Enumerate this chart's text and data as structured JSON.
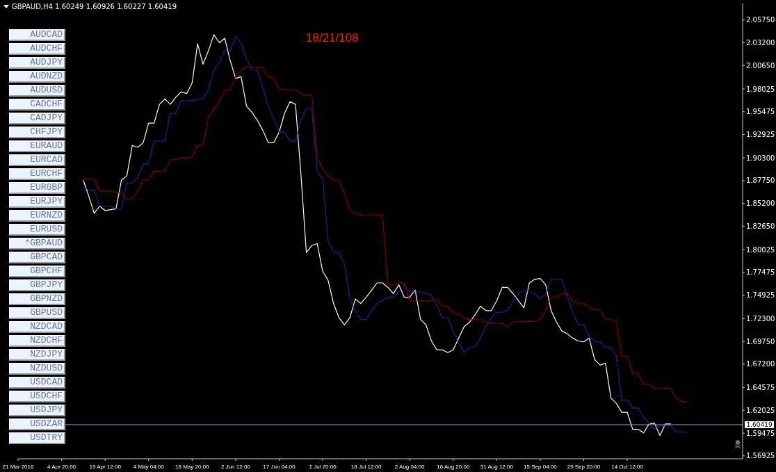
{
  "chart_data": {
    "type": "line",
    "title": "GBPAUD,H4  1.60249 1.60926 1.60227 1.60419",
    "annotations": [
      "18/21/108",
      "AUDCAD",
      "AUDCHF",
      "AUDJPY",
      "AUDNZD",
      "AUDUSD",
      "CADCHF",
      "CADJPY",
      "CHFJPY",
      "EURAUD",
      "EURCAD",
      "EURCHF",
      "EURGBP",
      "EURJPY",
      "EURNZD",
      "EURUSD",
      "*GBPAUD",
      "GBPCAD",
      "GBPCHF",
      "GBPJPY",
      "GBPNZD",
      "GBPUSD",
      "NZDCAD",
      "NZDCHF",
      "NZDJPY",
      "NZDUSD",
      "USDCAD",
      "USDCHF",
      "USDJPY",
      "USDZAR",
      "USDTRY"
    ],
    "categories": [
      "21 Mar 2016",
      null,
      null,
      null,
      null,
      null,
      null,
      null,
      "4 Apr 20:00",
      null,
      null,
      null,
      null,
      null,
      null,
      null,
      "19 Apr 12:00",
      null,
      null,
      null,
      null,
      null,
      null,
      null,
      "4 May 04:00",
      null,
      null,
      null,
      null,
      null,
      null,
      null,
      "18 May 20:00",
      null,
      null,
      null,
      null,
      null,
      null,
      null,
      "2 Jun 12:00",
      null,
      null,
      null,
      null,
      null,
      null,
      null,
      "17 Jun 04:00",
      null,
      null,
      null,
      null,
      null,
      null,
      null,
      "1 Jul 20:00",
      null,
      null,
      null,
      null,
      null,
      null,
      null,
      "18 Jul 12:00",
      null,
      null,
      null,
      null,
      null,
      null,
      null,
      "2 Aug 04:00",
      null,
      null,
      null,
      null,
      null,
      null,
      null,
      "16 Aug 20:00",
      null,
      null,
      null,
      null,
      null,
      null,
      null,
      "31 Aug 12:00",
      null,
      null,
      null,
      null,
      null,
      null,
      null,
      "15 Sep 04:00",
      null,
      null,
      null,
      null,
      null,
      null,
      null,
      "29 Sep 20:00",
      null,
      null,
      null,
      null,
      null,
      null,
      null,
      "14 Oct 12:00",
      null,
      null,
      null,
      null,
      null,
      null,
      null,
      null,
      null,
      null,
      null
    ],
    "series": [
      {
        "color": "#ffffff",
        "values": [
          null,
          null,
          null,
          null,
          null,
          null,
          null,
          null,
          null,
          null,
          null,
          null,
          1.878,
          1.86,
          1.841,
          1.849,
          1.844,
          1.845,
          1.846,
          1.878,
          1.883,
          1.917,
          1.915,
          1.92,
          1.942,
          1.942,
          1.963,
          1.969,
          1.963,
          1.971,
          1.977,
          1.975,
          1.987,
          2.031,
          2.008,
          2.023,
          2.041,
          2.032,
          2.037,
          2.012,
          1.992,
          1.994,
          1.961,
          1.954,
          1.945,
          1.934,
          1.92,
          1.92,
          1.932,
          1.953,
          1.966,
          1.963,
          1.885,
          1.797,
          1.805,
          1.807,
          1.776,
          1.766,
          1.74,
          1.724,
          1.716,
          1.724,
          1.745,
          1.74,
          1.747,
          1.755,
          1.763,
          1.763,
          1.758,
          1.751,
          1.761,
          1.747,
          1.747,
          1.755,
          1.722,
          1.716,
          1.698,
          1.688,
          1.688,
          1.685,
          1.688,
          1.701,
          1.714,
          1.719,
          1.727,
          1.737,
          1.732,
          1.732,
          1.743,
          1.758,
          1.758,
          1.751,
          1.743,
          1.735,
          1.763,
          1.767,
          1.768,
          1.761,
          1.732,
          1.719,
          1.709,
          1.706,
          1.701,
          1.698,
          1.697,
          1.701,
          1.677,
          1.671,
          1.673,
          1.634,
          1.628,
          1.618,
          1.618,
          1.599,
          1.599,
          1.595,
          1.605,
          1.606,
          1.592,
          1.605,
          1.605,
          null,
          null,
          null
        ]
      },
      {
        "color": "#a00000",
        "line_style": "dotted",
        "values": [
          null,
          null,
          null,
          null,
          null,
          null,
          null,
          null,
          null,
          null,
          null,
          null,
          1.88,
          1.88,
          1.88,
          1.866,
          1.866,
          1.866,
          1.864,
          1.864,
          1.857,
          1.857,
          1.866,
          1.878,
          1.878,
          1.888,
          1.888,
          1.888,
          1.901,
          1.901,
          1.903,
          1.903,
          1.903,
          1.917,
          1.917,
          1.948,
          1.958,
          1.966,
          1.979,
          1.979,
          1.994,
          2.001,
          2.005,
          2.005,
          2.005,
          2.004,
          1.994,
          1.992,
          1.98,
          1.98,
          1.979,
          1.979,
          1.975,
          1.973,
          1.973,
          1.903,
          1.891,
          1.883,
          1.878,
          1.878,
          1.864,
          1.844,
          1.841,
          1.839,
          1.839,
          1.839,
          1.839,
          1.839,
          1.761,
          1.761,
          1.763,
          1.763,
          1.743,
          1.743,
          1.743,
          1.743,
          1.743,
          1.745,
          1.737,
          1.737,
          1.73,
          1.728,
          1.724,
          1.722,
          1.722,
          1.722,
          1.719,
          1.718,
          1.718,
          1.718,
          1.714,
          1.719,
          1.72,
          1.72,
          1.72,
          1.72,
          1.722,
          1.732,
          1.747,
          1.747,
          1.751,
          1.751,
          1.743,
          1.74,
          1.74,
          1.736,
          1.733,
          1.733,
          1.722,
          1.722,
          1.72,
          1.681,
          1.681,
          1.662,
          1.662,
          1.65,
          1.649,
          1.645,
          1.645,
          1.645,
          1.645,
          1.634,
          1.63,
          1.63
        ]
      },
      {
        "color": "#2828a8",
        "line_style": "dotted",
        "values": [
          null,
          null,
          null,
          null,
          null,
          null,
          null,
          null,
          null,
          null,
          null,
          null,
          1.87,
          1.867,
          1.867,
          1.849,
          1.849,
          1.849,
          1.846,
          1.846,
          1.875,
          1.875,
          1.881,
          1.896,
          1.896,
          1.922,
          1.922,
          1.922,
          1.953,
          1.953,
          1.967,
          1.967,
          1.967,
          1.969,
          1.969,
          1.979,
          2.001,
          2.01,
          2.023,
          2.023,
          2.039,
          2.031,
          2.014,
          2.002,
          2.002,
          1.981,
          1.961,
          1.948,
          1.932,
          1.932,
          1.922,
          1.922,
          1.945,
          1.958,
          1.958,
          1.888,
          1.88,
          1.81,
          1.797,
          1.797,
          1.784,
          1.745,
          1.732,
          1.722,
          1.722,
          1.732,
          1.74,
          1.743,
          1.747,
          1.747,
          1.753,
          1.761,
          1.753,
          1.753,
          1.753,
          1.751,
          1.749,
          1.737,
          1.724,
          1.724,
          1.709,
          1.696,
          1.685,
          1.691,
          1.691,
          1.701,
          1.714,
          1.724,
          1.73,
          1.73,
          1.732,
          1.743,
          1.751,
          1.754,
          1.754,
          1.751,
          1.745,
          1.751,
          1.767,
          1.767,
          1.767,
          1.747,
          1.73,
          1.716,
          1.716,
          1.704,
          1.697,
          1.697,
          1.691,
          1.691,
          1.681,
          1.631,
          1.632,
          1.623,
          1.623,
          1.613,
          1.606,
          1.599,
          1.603,
          1.603,
          1.603,
          1.596,
          1.596,
          1.596
        ]
      }
    ],
    "ylim": [
      1.566,
      2.076
    ],
    "yticks": [
      {
        "value": 2.0575,
        "label": "2.05750"
      },
      {
        "value": 2.032,
        "label": "2.03200"
      },
      {
        "value": 2.0065,
        "label": "2.00650"
      },
      {
        "value": 1.98025,
        "label": "1.98025"
      },
      {
        "value": 1.95475,
        "label": "1.95475"
      },
      {
        "value": 1.92925,
        "label": "1.92925"
      },
      {
        "value": 1.903,
        "label": "1.90300"
      },
      {
        "value": 1.8775,
        "label": "1.87750"
      },
      {
        "value": 1.852,
        "label": "1.85200"
      },
      {
        "value": 1.8265,
        "label": "1.82650"
      },
      {
        "value": 1.80025,
        "label": "1.80025"
      },
      {
        "value": 1.77475,
        "label": "1.77475"
      },
      {
        "value": 1.74925,
        "label": "1.74925"
      },
      {
        "value": 1.723,
        "label": "1.72300"
      },
      {
        "value": 1.6975,
        "label": "1.69750"
      },
      {
        "value": 1.672,
        "label": "1.67200"
      },
      {
        "value": 1.64575,
        "label": "1.64575"
      },
      {
        "value": 1.62025,
        "label": "1.62025"
      },
      {
        "value": 1.59475,
        "label": "1.59475"
      },
      {
        "value": 1.56925,
        "label": "1.56925"
      }
    ],
    "ref_lines": [
      {
        "axis": "y",
        "value": 1.60419,
        "label": "1.60419",
        "color": "#8c9bb5"
      }
    ]
  }
}
